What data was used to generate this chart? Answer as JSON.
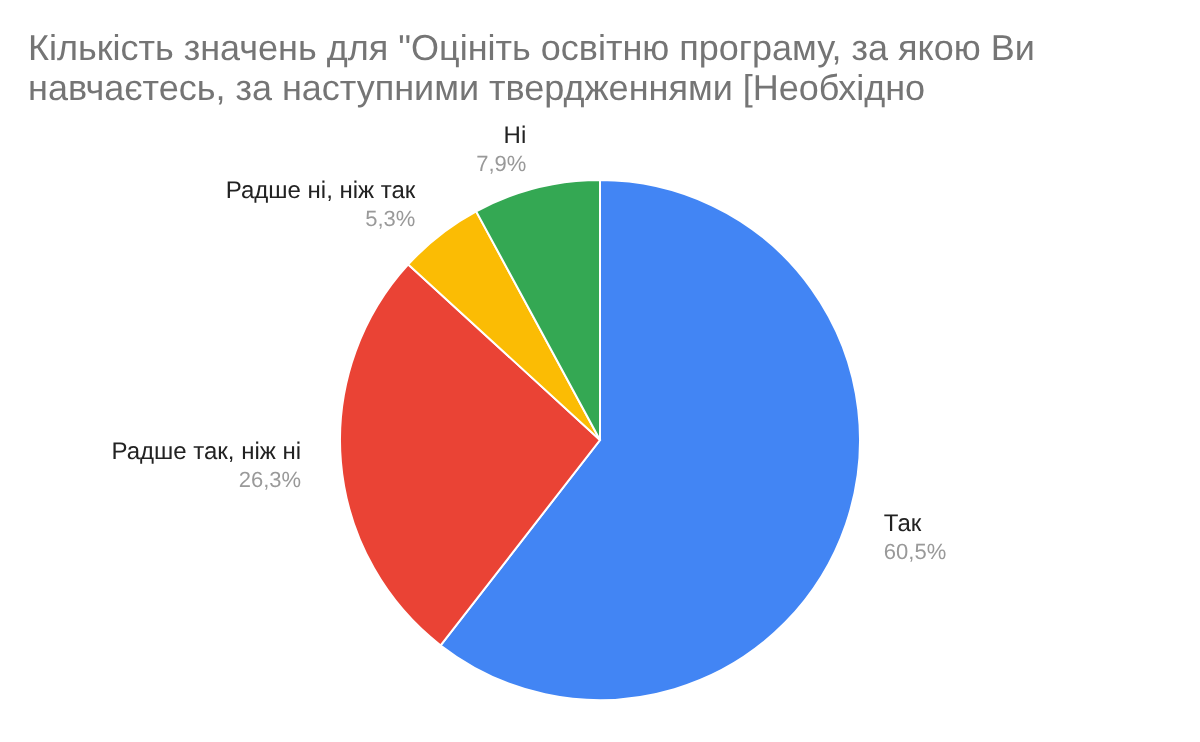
{
  "chart_data": {
    "type": "pie",
    "title": "Кількість значень для \"Оцініть освітню програму, за якою Ви навчаєтесь, за наступними твердженнями [Необхідно",
    "categories": [
      "Так",
      "Радше так, ніж ні",
      "Радше ні, ніж так",
      "Ні"
    ],
    "values": [
      60.5,
      26.3,
      5.3,
      7.9
    ],
    "value_labels": [
      "60,5%",
      "26,3%",
      "5,3%",
      "7,9%"
    ],
    "colors": [
      "#4285f4",
      "#ea4335",
      "#fbbc04",
      "#34a853"
    ],
    "legend": false
  }
}
